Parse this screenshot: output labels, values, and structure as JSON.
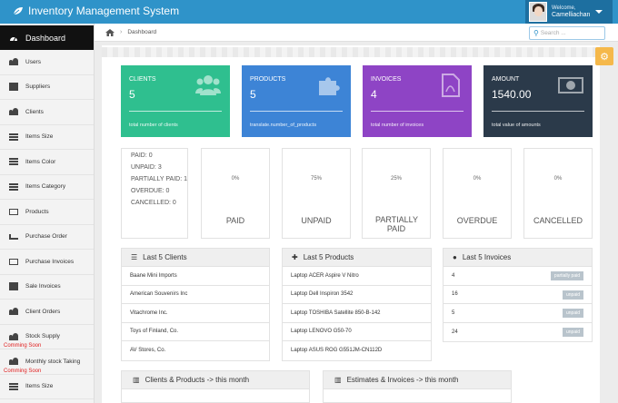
{
  "app": {
    "title": "Inventory Management System"
  },
  "user": {
    "welcome": "Welcome,",
    "name": "Camelliachan"
  },
  "sidebar": {
    "dashboard": "Dashboard",
    "items": [
      {
        "label": "Users",
        "icon": "users-icon"
      },
      {
        "label": "Suppliers",
        "icon": "document-icon"
      },
      {
        "label": "Clients",
        "icon": "users-icon"
      },
      {
        "label": "Items Size",
        "icon": "list-icon"
      },
      {
        "label": "Items Color",
        "icon": "list-icon"
      },
      {
        "label": "Items Category",
        "icon": "list-icon"
      },
      {
        "label": "Products",
        "icon": "puzzle-icon"
      },
      {
        "label": "Purchase Order",
        "icon": "cart-icon"
      },
      {
        "label": "Purchase Invoices",
        "icon": "box-icon"
      },
      {
        "label": "Sale Invoices",
        "icon": "document-icon"
      },
      {
        "label": "Client Orders",
        "icon": "users-icon"
      },
      {
        "label": "Stock Supply",
        "icon": "users-icon",
        "note": "Comming Soon"
      },
      {
        "label": "Monthly stock Taking",
        "icon": "users-icon",
        "note": "Comming Soon"
      },
      {
        "label": "Items Size",
        "icon": "list-icon"
      }
    ]
  },
  "breadcrumb": {
    "current": "Dashboard"
  },
  "search": {
    "placeholder": "Search ..."
  },
  "cards": [
    {
      "title": "CLIENTS",
      "value": "5",
      "footer": "total number of clients",
      "color": "#2fbf8f",
      "icon": "users-icon"
    },
    {
      "title": "PRODUCTS",
      "value": "5",
      "footer": "translate.number_of_products",
      "color": "#3d84d6",
      "icon": "puzzle-icon"
    },
    {
      "title": "INVOICES",
      "value": "4",
      "footer": "total number of invoices",
      "color": "#8e44c5",
      "icon": "pdf-file-icon"
    },
    {
      "title": "AMOUNT",
      "value": "1540.00",
      "footer": "total value of amounts",
      "color": "#2b3a4a",
      "icon": "money-icon"
    }
  ],
  "status_summary": {
    "paid": "PAID: 0",
    "unpaid": "UNPAID: 3",
    "partially": "PARTIALLY PAID: 1",
    "overdue": "OVERDUE: 0",
    "cancelled": "CANCELLED: 0"
  },
  "status_boxes": [
    {
      "pct": "0%",
      "label": "PAID",
      "percent": 0
    },
    {
      "pct": "75%",
      "label": "UNPAID",
      "percent": 75
    },
    {
      "pct": "25%",
      "label": "PARTIALLY PAID",
      "percent": 25
    },
    {
      "pct": "0%",
      "label": "OVERDUE",
      "percent": 0
    },
    {
      "pct": "0%",
      "label": "CANCELLED",
      "percent": 0
    }
  ],
  "panels": {
    "clients": {
      "title": "Last 5 Clients",
      "rows": [
        "Baane Mini Imports",
        "American Souvenirs Inc",
        "Vitachrome Inc.",
        "Toys of Finland, Co.",
        "AV Stores, Co."
      ]
    },
    "products": {
      "title": "Last 5 Products",
      "rows": [
        "Laptop ACER Aspire V Nitro",
        "Laptop Dell Inspiron 3542",
        "Laptop TOSHIBA Satellite 850-B-142",
        "Laptop LENOVO G50-70",
        "Laptop ASUS ROG G551JM-CN112D"
      ]
    },
    "invoices": {
      "title": "Last 5 Invoices",
      "rows": [
        {
          "id": "4",
          "status": "partially paid"
        },
        {
          "id": "16",
          "status": "unpaid"
        },
        {
          "id": "5",
          "status": "unpaid"
        },
        {
          "id": "24",
          "status": "unpaid"
        }
      ]
    }
  },
  "charts": {
    "clients_products": "Clients & Products -> this month",
    "estimates_invoices": "Estimates & Invoices -> this month"
  }
}
